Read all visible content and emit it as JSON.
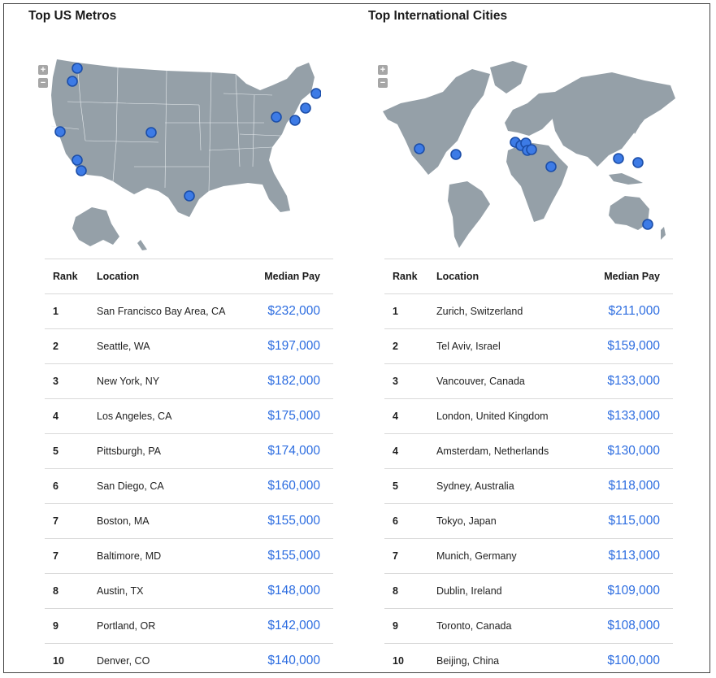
{
  "us": {
    "title": "Top US Metros",
    "zoom_in_label": "+",
    "zoom_out_label": "−",
    "columns": {
      "rank": "Rank",
      "location": "Location",
      "pay": "Median Pay"
    },
    "rows": [
      {
        "rank": "1",
        "location": "San Francisco Bay Area, CA",
        "pay": "$232,000"
      },
      {
        "rank": "2",
        "location": "Seattle, WA",
        "pay": "$197,000"
      },
      {
        "rank": "3",
        "location": "New York, NY",
        "pay": "$182,000"
      },
      {
        "rank": "4",
        "location": "Los Angeles, CA",
        "pay": "$175,000"
      },
      {
        "rank": "5",
        "location": "Pittsburgh, PA",
        "pay": "$174,000"
      },
      {
        "rank": "6",
        "location": "San Diego, CA",
        "pay": "$160,000"
      },
      {
        "rank": "7",
        "location": "Boston, MA",
        "pay": "$155,000"
      },
      {
        "rank": "7",
        "location": "Baltimore, MD",
        "pay": "$155,000"
      },
      {
        "rank": "8",
        "location": "Austin, TX",
        "pay": "$148,000"
      },
      {
        "rank": "9",
        "location": "Portland, OR",
        "pay": "$142,000"
      },
      {
        "rank": "10",
        "location": "Denver, CO",
        "pay": "$140,000"
      }
    ]
  },
  "intl": {
    "title": "Top International Cities",
    "zoom_in_label": "+",
    "zoom_out_label": "−",
    "columns": {
      "rank": "Rank",
      "location": "Location",
      "pay": "Median Pay"
    },
    "rows": [
      {
        "rank": "1",
        "location": "Zurich, Switzerland",
        "pay": "$211,000"
      },
      {
        "rank": "2",
        "location": "Tel Aviv, Israel",
        "pay": "$159,000"
      },
      {
        "rank": "3",
        "location": "Vancouver, Canada",
        "pay": "$133,000"
      },
      {
        "rank": "4",
        "location": "London, United Kingdom",
        "pay": "$133,000"
      },
      {
        "rank": "4",
        "location": "Amsterdam, Netherlands",
        "pay": "$130,000"
      },
      {
        "rank": "5",
        "location": "Sydney, Australia",
        "pay": "$118,000"
      },
      {
        "rank": "6",
        "location": "Tokyo, Japan",
        "pay": "$115,000"
      },
      {
        "rank": "7",
        "location": "Munich, Germany",
        "pay": "$113,000"
      },
      {
        "rank": "8",
        "location": "Dublin, Ireland",
        "pay": "$109,000"
      },
      {
        "rank": "9",
        "location": "Toronto, Canada",
        "pay": "$108,000"
      },
      {
        "rank": "10",
        "location": "Beijing, China",
        "pay": "$100,000"
      }
    ]
  },
  "colors": {
    "land": "#95a0a8",
    "marker": "#3d7be6",
    "pay_text": "#2d6de0"
  },
  "icons": {
    "zoom_in": "plus-icon",
    "zoom_out": "minus-icon",
    "marker": "location-marker-icon"
  }
}
